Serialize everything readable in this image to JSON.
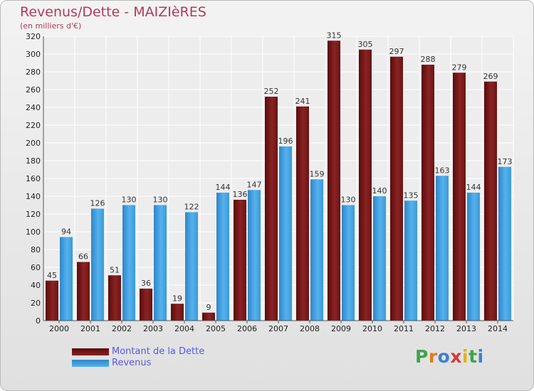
{
  "title": "Revenus/Dette - MAIZIèRES",
  "subtitle": "(en milliers d'€)",
  "colors": {
    "dette": "#7a1a1a",
    "revenus": "#3d9fe0"
  },
  "legend": [
    {
      "label": "Montant de la Dette",
      "color": "#7a1a1a"
    },
    {
      "label": "Revenus",
      "color": "#3d9fe0"
    }
  ],
  "logo": {
    "text": "Proxiti",
    "letter_colors": [
      "#3fa34d",
      "#e07b1a",
      "#3d7fd6",
      "#d43a3a",
      "#e0b21a",
      "#3fa34d",
      "#3d7fd6"
    ]
  },
  "chart_data": {
    "type": "bar",
    "title": "Revenus/Dette - MAIZIèRES",
    "subtitle": "(en milliers d'€)",
    "categories": [
      "2000",
      "2001",
      "2002",
      "2003",
      "2004",
      "2005",
      "2006",
      "2007",
      "2008",
      "2009",
      "2010",
      "2011",
      "2012",
      "2013",
      "2014"
    ],
    "series": [
      {
        "name": "Montant de la Dette",
        "values": [
          45,
          66,
          51,
          36,
          19,
          9,
          136,
          252,
          241,
          315,
          305,
          297,
          288,
          279,
          269
        ]
      },
      {
        "name": "Revenus",
        "values": [
          94,
          126,
          130,
          130,
          122,
          144,
          147,
          196,
          159,
          130,
          140,
          135,
          163,
          144,
          173
        ]
      }
    ],
    "ylim": [
      0,
      320
    ],
    "ytick_step": 20,
    "grid": true,
    "legend_position": "bottom-left"
  }
}
